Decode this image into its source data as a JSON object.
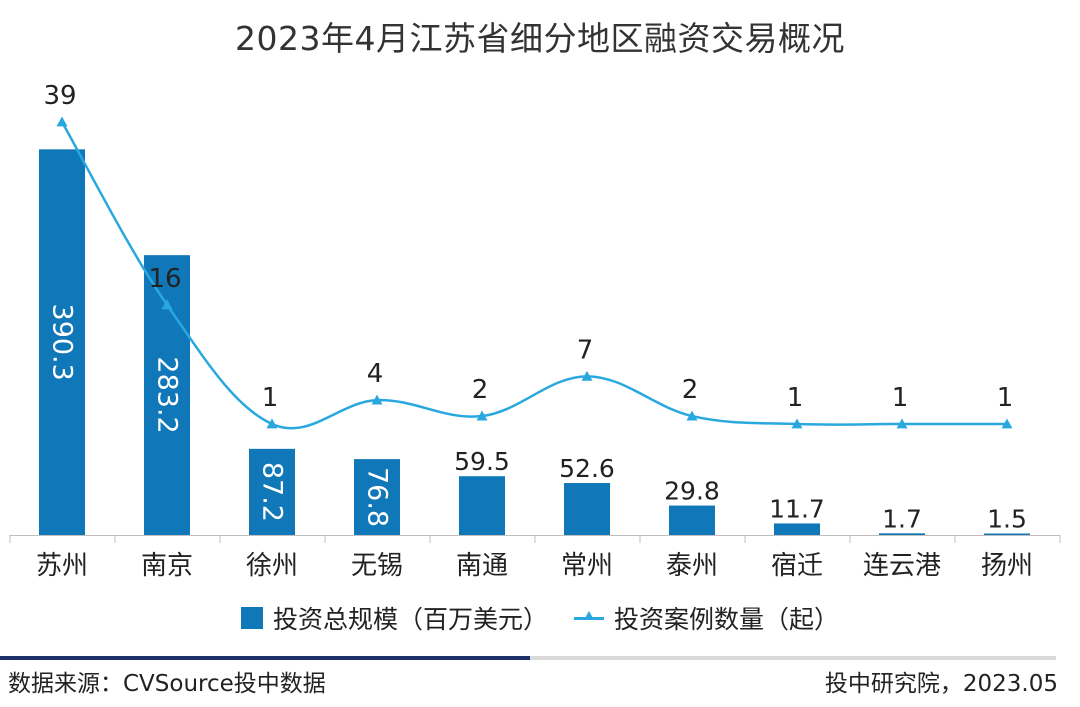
{
  "chart_data": {
    "type": "bar",
    "title": "2023年4月江苏省细分地区融资交易概况",
    "categories": [
      "苏州",
      "南京",
      "徐州",
      "无锡",
      "南通",
      "常州",
      "泰州",
      "宿迁",
      "连云港",
      "扬州"
    ],
    "series": [
      {
        "name": "投资总规模（百万美元）",
        "type": "bar",
        "values": [
          390.3,
          283.2,
          87.2,
          76.8,
          59.5,
          52.6,
          29.8,
          11.7,
          1.7,
          1.5
        ],
        "value_labels": [
          "390.3",
          "283.2",
          "87.2",
          "76.8",
          "59.5",
          "52.6",
          "29.8",
          "11.7",
          "1.7",
          "1.5"
        ],
        "color": "#1077b8"
      },
      {
        "name": "投资案例数量（起）",
        "type": "line",
        "smooth": true,
        "values": [
          39,
          16,
          1,
          4,
          2,
          7,
          2,
          1,
          1,
          1
        ],
        "value_labels": [
          "39",
          "16",
          "1",
          "4",
          "2",
          "7",
          "2",
          "1",
          "1",
          "1"
        ],
        "color": "#29a8e0"
      }
    ],
    "ylim_bar": [
      0,
      420
    ],
    "ylim_line": [
      -8,
      42
    ],
    "legend_position": "bottom",
    "grid": false
  },
  "footer": {
    "source": "数据来源：CVSource投中数据",
    "credit": "投中研究院，2023.05"
  }
}
